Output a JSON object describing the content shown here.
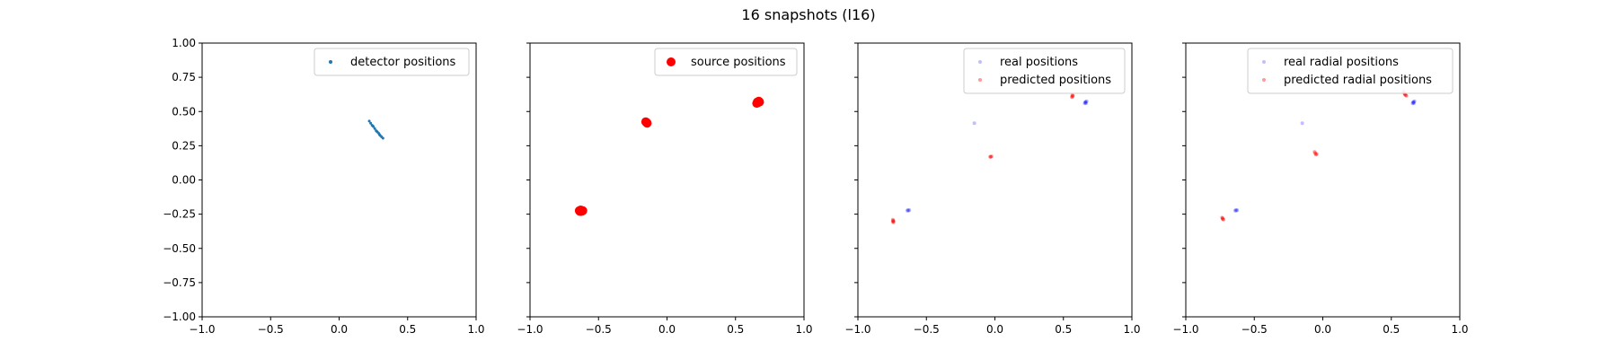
{
  "figure": {
    "title": "16 snapshots (l16)"
  },
  "chart_data": [
    {
      "type": "scatter",
      "xlim": [
        -1.0,
        1.0
      ],
      "ylim": [
        -1.0,
        1.0
      ],
      "xticks": [
        "−1.0",
        "−0.5",
        "0.0",
        "0.5",
        "1.0"
      ],
      "yticks": [
        "−1.00",
        "−0.75",
        "−0.50",
        "−0.25",
        "0.00",
        "0.25",
        "0.50",
        "0.75",
        "1.00"
      ],
      "show_ytick_labels": true,
      "legend_position": "top-right",
      "series": [
        {
          "name": "detector positions",
          "color": "#1f77b4",
          "alpha": 1.0,
          "marker_size": 1.5,
          "points": [
            [
              0.22,
              0.43
            ],
            [
              0.23,
              0.415
            ],
            [
              0.24,
              0.4
            ],
            [
              0.25,
              0.39
            ],
            [
              0.26,
              0.375
            ],
            [
              0.27,
              0.36
            ],
            [
              0.28,
              0.35
            ],
            [
              0.29,
              0.34
            ],
            [
              0.3,
              0.325
            ],
            [
              0.31,
              0.315
            ],
            [
              0.32,
              0.305
            ],
            [
              0.245,
              0.395
            ],
            [
              0.275,
              0.355
            ],
            [
              0.295,
              0.33
            ]
          ]
        }
      ]
    },
    {
      "type": "scatter",
      "xlim": [
        -1.0,
        1.0
      ],
      "ylim": [
        -1.0,
        1.0
      ],
      "xticks": [
        "−1.0",
        "−0.5",
        "0.0",
        "0.5",
        "1.0"
      ],
      "yticks": [
        "−1.00",
        "−0.75",
        "−0.50",
        "−0.25",
        "0.00",
        "0.25",
        "0.50",
        "0.75",
        "1.00"
      ],
      "show_ytick_labels": false,
      "legend_position": "top-right",
      "series": [
        {
          "name": "source positions",
          "color": "#ff0000",
          "alpha": 1.0,
          "marker_size": 5,
          "points": [
            [
              -0.64,
              -0.225
            ],
            [
              -0.63,
              -0.22
            ],
            [
              -0.625,
              -0.23
            ],
            [
              -0.615,
              -0.225
            ],
            [
              -0.635,
              -0.23
            ],
            [
              -0.15,
              0.42
            ],
            [
              -0.145,
              0.415
            ],
            [
              -0.155,
              0.425
            ],
            [
              0.655,
              0.56
            ],
            [
              0.66,
              0.57
            ],
            [
              0.67,
              0.575
            ],
            [
              0.665,
              0.565
            ],
            [
              0.675,
              0.57
            ]
          ]
        }
      ]
    },
    {
      "type": "scatter",
      "xlim": [
        -1.0,
        1.0
      ],
      "ylim": [
        -1.0,
        1.0
      ],
      "xticks": [
        "−1.0",
        "−0.5",
        "0.0",
        "0.5",
        "1.0"
      ],
      "yticks": [
        "−1.00",
        "−0.75",
        "−0.50",
        "−0.25",
        "0.00",
        "0.25",
        "0.50",
        "0.75",
        "1.00"
      ],
      "show_ytick_labels": false,
      "legend_position": "top-right",
      "series": [
        {
          "name": "real positions",
          "color": "#0000ff",
          "alpha": 0.25,
          "marker_size": 2,
          "points": [
            [
              -0.64,
              -0.225
            ],
            [
              -0.635,
              -0.22
            ],
            [
              -0.63,
              -0.225
            ],
            [
              -0.625,
              -0.22
            ],
            [
              -0.15,
              0.415
            ],
            [
              0.655,
              0.56
            ],
            [
              0.66,
              0.565
            ],
            [
              0.665,
              0.57
            ],
            [
              0.67,
              0.575
            ],
            [
              0.66,
              0.57
            ],
            [
              0.665,
              0.56
            ]
          ]
        },
        {
          "name": "predicted positions",
          "color": "#ff0000",
          "alpha": 0.4,
          "marker_size": 2,
          "points": [
            [
              -0.745,
              -0.29
            ],
            [
              -0.74,
              -0.3
            ],
            [
              -0.745,
              -0.305
            ],
            [
              -0.74,
              -0.31
            ],
            [
              -0.742,
              -0.298
            ],
            [
              -0.035,
              0.17
            ],
            [
              -0.03,
              0.168
            ],
            [
              -0.025,
              0.172
            ],
            [
              0.565,
              0.61
            ],
            [
              0.565,
              0.62
            ],
            [
              0.57,
              0.615
            ],
            [
              0.562,
              0.605
            ]
          ]
        }
      ]
    },
    {
      "type": "scatter",
      "xlim": [
        -1.0,
        1.0
      ],
      "ylim": [
        -1.0,
        1.0
      ],
      "xticks": [
        "−1.0",
        "−0.5",
        "0.0",
        "0.5",
        "1.0"
      ],
      "yticks": [
        "−1.00",
        "−0.75",
        "−0.50",
        "−0.25",
        "0.00",
        "0.25",
        "0.50",
        "0.75",
        "1.00"
      ],
      "show_ytick_labels": false,
      "legend_position": "top-right",
      "series": [
        {
          "name": "real radial positions",
          "color": "#0000ff",
          "alpha": 0.25,
          "marker_size": 2,
          "points": [
            [
              -0.64,
              -0.225
            ],
            [
              -0.635,
              -0.22
            ],
            [
              -0.63,
              -0.225
            ],
            [
              -0.625,
              -0.22
            ],
            [
              -0.15,
              0.415
            ],
            [
              0.655,
              0.56
            ],
            [
              0.66,
              0.565
            ],
            [
              0.665,
              0.57
            ],
            [
              0.67,
              0.575
            ],
            [
              0.66,
              0.57
            ],
            [
              0.665,
              0.56
            ]
          ]
        },
        {
          "name": "predicted radial positions",
          "color": "#ff0000",
          "alpha": 0.4,
          "marker_size": 2,
          "points": [
            [
              -0.735,
              -0.275
            ],
            [
              -0.73,
              -0.285
            ],
            [
              -0.725,
              -0.29
            ],
            [
              -0.732,
              -0.28
            ],
            [
              -0.06,
              0.205
            ],
            [
              -0.055,
              0.195
            ],
            [
              -0.05,
              0.185
            ],
            [
              -0.045,
              0.19
            ],
            [
              0.59,
              0.645
            ],
            [
              0.595,
              0.635
            ],
            [
              0.6,
              0.625
            ],
            [
              0.605,
              0.62
            ],
            [
              0.61,
              0.615
            ],
            [
              0.598,
              0.63
            ]
          ]
        }
      ]
    }
  ]
}
